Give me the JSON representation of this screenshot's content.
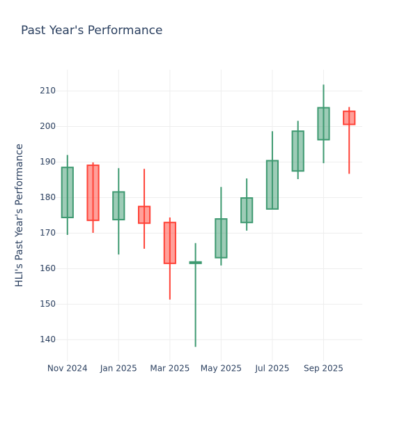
{
  "chart_data": {
    "type": "candlestick",
    "title": "Past Year's Performance",
    "y_label": "HLI's Past Year's Performance",
    "x": [
      "2024-11",
      "2024-12",
      "2025-01",
      "2025-02",
      "2025-03",
      "2025-04",
      "2025-05",
      "2025-06",
      "2025-07",
      "2025-08",
      "2025-09",
      "2025-10"
    ],
    "open": [
      174.4,
      189.1,
      173.8,
      177.5,
      173.0,
      161.5,
      163.1,
      173.0,
      176.8,
      187.5,
      196.3,
      204.3
    ],
    "high": [
      192.0,
      189.9,
      188.3,
      188.1,
      174.4,
      167.2,
      183.0,
      185.4,
      198.7,
      201.6,
      211.8,
      205.5
    ],
    "low": [
      169.5,
      170.1,
      164.0,
      165.6,
      151.3,
      138.0,
      160.9,
      170.7,
      176.8,
      185.2,
      189.7,
      186.7
    ],
    "close": [
      188.5,
      173.6,
      181.6,
      172.8,
      161.5,
      161.9,
      174.0,
      179.9,
      190.4,
      198.7,
      205.3,
      200.6
    ],
    "increasing_color": "#3d9970",
    "decreasing_color": "#ff4136",
    "xlim": [
      "2024-10",
      "2025-11"
    ],
    "xticks": [
      {
        "value": "2024-11",
        "label": "Nov 2024"
      },
      {
        "value": "2025-01",
        "label": "Jan 2025"
      },
      {
        "value": "2025-03",
        "label": "Mar 2025"
      },
      {
        "value": "2025-05",
        "label": "May 2025"
      },
      {
        "value": "2025-07",
        "label": "Jul 2025"
      },
      {
        "value": "2025-09",
        "label": "Sep 2025"
      }
    ],
    "ylim": [
      134,
      216
    ],
    "yticks": [
      140,
      150,
      160,
      170,
      180,
      190,
      200,
      210
    ],
    "grid": true
  }
}
